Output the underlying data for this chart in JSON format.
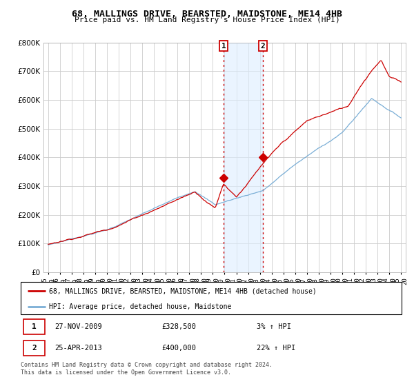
{
  "title": "68, MALLINGS DRIVE, BEARSTED, MAIDSTONE, ME14 4HB",
  "subtitle": "Price paid vs. HM Land Registry's House Price Index (HPI)",
  "ylim": [
    0,
    800000
  ],
  "yticks": [
    0,
    100000,
    200000,
    300000,
    400000,
    500000,
    600000,
    700000,
    800000
  ],
  "sale1": {
    "date": "27-NOV-2009",
    "price": 328500,
    "pct": "3%",
    "dir": "↑"
  },
  "sale2": {
    "date": "25-APR-2013",
    "price": 400000,
    "pct": "22%",
    "dir": "↑"
  },
  "legend_red": "68, MALLINGS DRIVE, BEARSTED, MAIDSTONE, ME14 4HB (detached house)",
  "legend_blue": "HPI: Average price, detached house, Maidstone",
  "footnote": "Contains HM Land Registry data © Crown copyright and database right 2024.\nThis data is licensed under the Open Government Licence v3.0.",
  "red_color": "#cc0000",
  "blue_color": "#7aaed6",
  "shade_color": "#ddeeff",
  "vline_color": "#cc0000",
  "background_color": "#ffffff",
  "grid_color": "#cccccc",
  "chart_bg": "#f5f5f8"
}
